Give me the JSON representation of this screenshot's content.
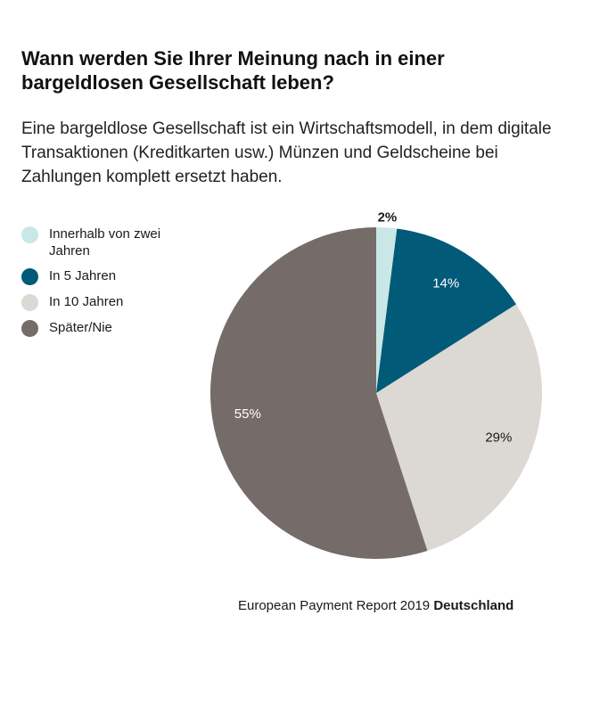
{
  "header": {
    "title": "Wann werden Sie Ihrer Meinung nach in einer bargeldlosen Gesellschaft leben?",
    "subtitle": "Eine bargeldlose Gesellschaft ist ein Wirtschaftsmodell, in dem digitale Transaktionen (Kreditkarten usw.) Münzen und Geldscheine bei Zahlungen komplett ersetzt haben."
  },
  "legend": [
    {
      "label": "Innerhalb von zwei Jahren",
      "color": "#c9e7e6"
    },
    {
      "label": "In 5 Jahren",
      "color": "#005a78"
    },
    {
      "label": "In 10 Jahren",
      "color": "#dcd8d3"
    },
    {
      "label": "Später/Nie",
      "color": "#756c69"
    }
  ],
  "chart_data": {
    "type": "pie",
    "title": "Wann werden Sie Ihrer Meinung nach in einer bargeldlosen Gesellschaft leben?",
    "categories": [
      "Innerhalb von zwei Jahren",
      "In 5 Jahren",
      "In 10 Jahren",
      "Später/Nie"
    ],
    "values": [
      2,
      14,
      29,
      55
    ],
    "labels": [
      "2%",
      "14%",
      "29%",
      "55%"
    ],
    "colors": [
      "#c9e7e6",
      "#005a78",
      "#dcd8d3",
      "#756c69"
    ],
    "label_colors": [
      "#1a1a1a",
      "#ffffff",
      "#1a1a1a",
      "#ffffff"
    ],
    "legend_position": "left"
  },
  "source": {
    "text": "European Payment Report 2019",
    "bold": "Deutschland"
  }
}
